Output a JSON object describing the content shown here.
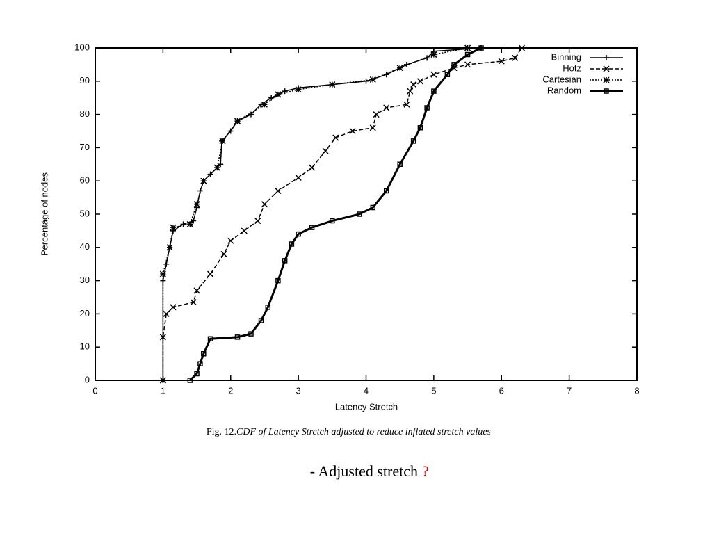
{
  "chart_data": {
    "type": "line",
    "xlabel": "Latency Stretch",
    "ylabel": "Percentage of nodes",
    "xlim": [
      0,
      8
    ],
    "ylim": [
      0,
      100
    ],
    "xticks": [
      0,
      1,
      2,
      3,
      4,
      5,
      6,
      7,
      8
    ],
    "yticks": [
      0,
      10,
      20,
      30,
      40,
      50,
      60,
      70,
      80,
      90,
      100
    ],
    "legend": "top-right",
    "grid": false,
    "series": [
      {
        "name": "Binning",
        "color": "#000000",
        "marker": "plus",
        "dash": "solid",
        "width": 1.5,
        "x": [
          1,
          1,
          1.05,
          1.1,
          1.15,
          1.3,
          1.45,
          1.5,
          1.55,
          1.6,
          1.7,
          1.8,
          1.85,
          1.87,
          2,
          2.1,
          2.3,
          2.45,
          2.6,
          2.8,
          3,
          3.5,
          4,
          4.3,
          4.6,
          4.9,
          5,
          5.7
        ],
        "values": [
          0,
          30,
          35,
          40,
          45,
          47,
          48,
          52,
          57,
          60,
          62,
          64,
          65,
          72,
          75,
          78,
          80,
          83,
          85,
          87,
          88,
          89,
          90,
          92,
          95,
          97,
          99,
          100
        ]
      },
      {
        "name": "Hotz",
        "color": "#000000",
        "marker": "cross",
        "dash": "dashed",
        "width": 1.5,
        "x": [
          1,
          1,
          1.05,
          1.15,
          1.45,
          1.5,
          1.7,
          1.9,
          2,
          2.2,
          2.4,
          2.5,
          2.7,
          3,
          3.2,
          3.4,
          3.55,
          3.8,
          4.1,
          4.15,
          4.3,
          4.6,
          4.65,
          4.7,
          4.8,
          5,
          5.3,
          5.5,
          6,
          6.2,
          6.3
        ],
        "values": [
          0,
          13,
          20,
          22,
          23.5,
          27,
          32,
          38,
          42,
          45,
          48,
          53,
          57,
          61,
          64,
          69,
          73,
          75,
          76,
          80,
          82,
          83,
          87,
          89,
          90,
          92,
          94,
          95,
          96,
          97,
          100
        ]
      },
      {
        "name": "Cartesian",
        "color": "#000000",
        "marker": "star",
        "dash": "dotted",
        "width": 1.5,
        "x": [
          1,
          1,
          1.1,
          1.15,
          1.4,
          1.5,
          1.6,
          1.8,
          1.88,
          2.1,
          2.5,
          2.7,
          3,
          3.5,
          4.1,
          4.5,
          5,
          5.5
        ],
        "values": [
          0,
          32,
          40,
          46,
          47,
          53,
          60,
          64,
          72,
          78,
          83,
          86,
          87.5,
          89,
          90.5,
          94,
          98,
          100
        ]
      },
      {
        "name": "Random",
        "color": "#000000",
        "marker": "square",
        "dash": "solid",
        "width": 3,
        "x": [
          1.4,
          1.5,
          1.55,
          1.6,
          1.7,
          2.1,
          2.3,
          2.45,
          2.55,
          2.7,
          2.8,
          2.9,
          3,
          3.2,
          3.5,
          3.9,
          4.1,
          4.3,
          4.5,
          4.7,
          4.8,
          4.9,
          5,
          5.2,
          5.3,
          5.5,
          5.7
        ],
        "values": [
          0,
          2,
          5,
          8,
          12.5,
          13,
          14,
          18,
          22,
          30,
          36,
          41,
          44,
          46,
          48,
          50,
          52,
          57,
          65,
          72,
          76,
          82,
          87,
          92,
          95,
          98,
          100
        ]
      }
    ]
  },
  "caption": {
    "label": "Fig. 12.",
    "text": "CDF of Latency Stretch adjusted to reduce inflated stretch values"
  },
  "note": {
    "text": "- Adjusted stretch",
    "mark": "?"
  }
}
